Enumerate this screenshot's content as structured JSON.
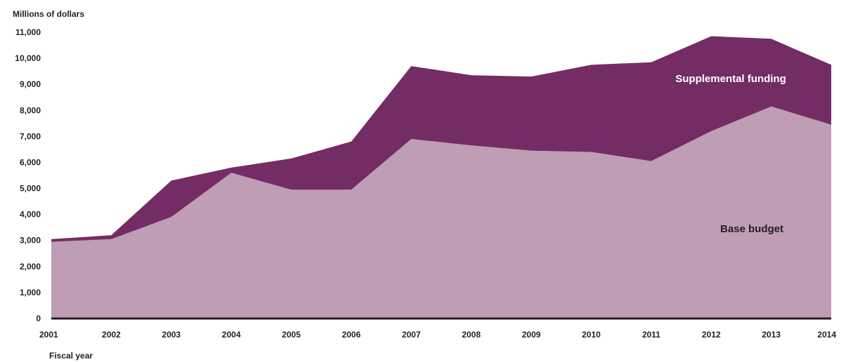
{
  "chart_data": {
    "type": "area",
    "stacked": true,
    "ylabel": "Millions of dollars",
    "xlabel": "Fiscal year",
    "ylim": [
      0,
      11000
    ],
    "yticks": [
      0,
      1000,
      2000,
      3000,
      4000,
      5000,
      6000,
      7000,
      8000,
      9000,
      10000,
      11000
    ],
    "ytick_labels": [
      "0",
      "1,000",
      "2,000",
      "3,000",
      "4,000",
      "5,000",
      "6,000",
      "7,000",
      "8,000",
      "9,000",
      "10,000",
      "11,000"
    ],
    "categories": [
      "2001",
      "2002",
      "2003",
      "2004",
      "2005",
      "2006",
      "2007",
      "2008",
      "2009",
      "2010",
      "2011",
      "2012",
      "2013",
      "2014"
    ],
    "series": [
      {
        "name": "Base budget",
        "color": "#bf9db5",
        "values": [
          2950,
          3050,
          3900,
          5600,
          4950,
          4950,
          6900,
          6650,
          6450,
          6400,
          6050,
          7200,
          8150,
          7450
        ]
      },
      {
        "name": "Supplemental funding",
        "color": "#742c64",
        "values": [
          100,
          150,
          1400,
          200,
          1200,
          1850,
          2800,
          2700,
          2850,
          3350,
          3800,
          3650,
          2600,
          2300
        ]
      }
    ],
    "totals": [
      3050,
      3200,
      5300,
      5800,
      6150,
      6800,
      9700,
      9350,
      9300,
      9750,
      9850,
      10850,
      10750,
      9750
    ],
    "grid": false,
    "legend": "inline labels"
  }
}
